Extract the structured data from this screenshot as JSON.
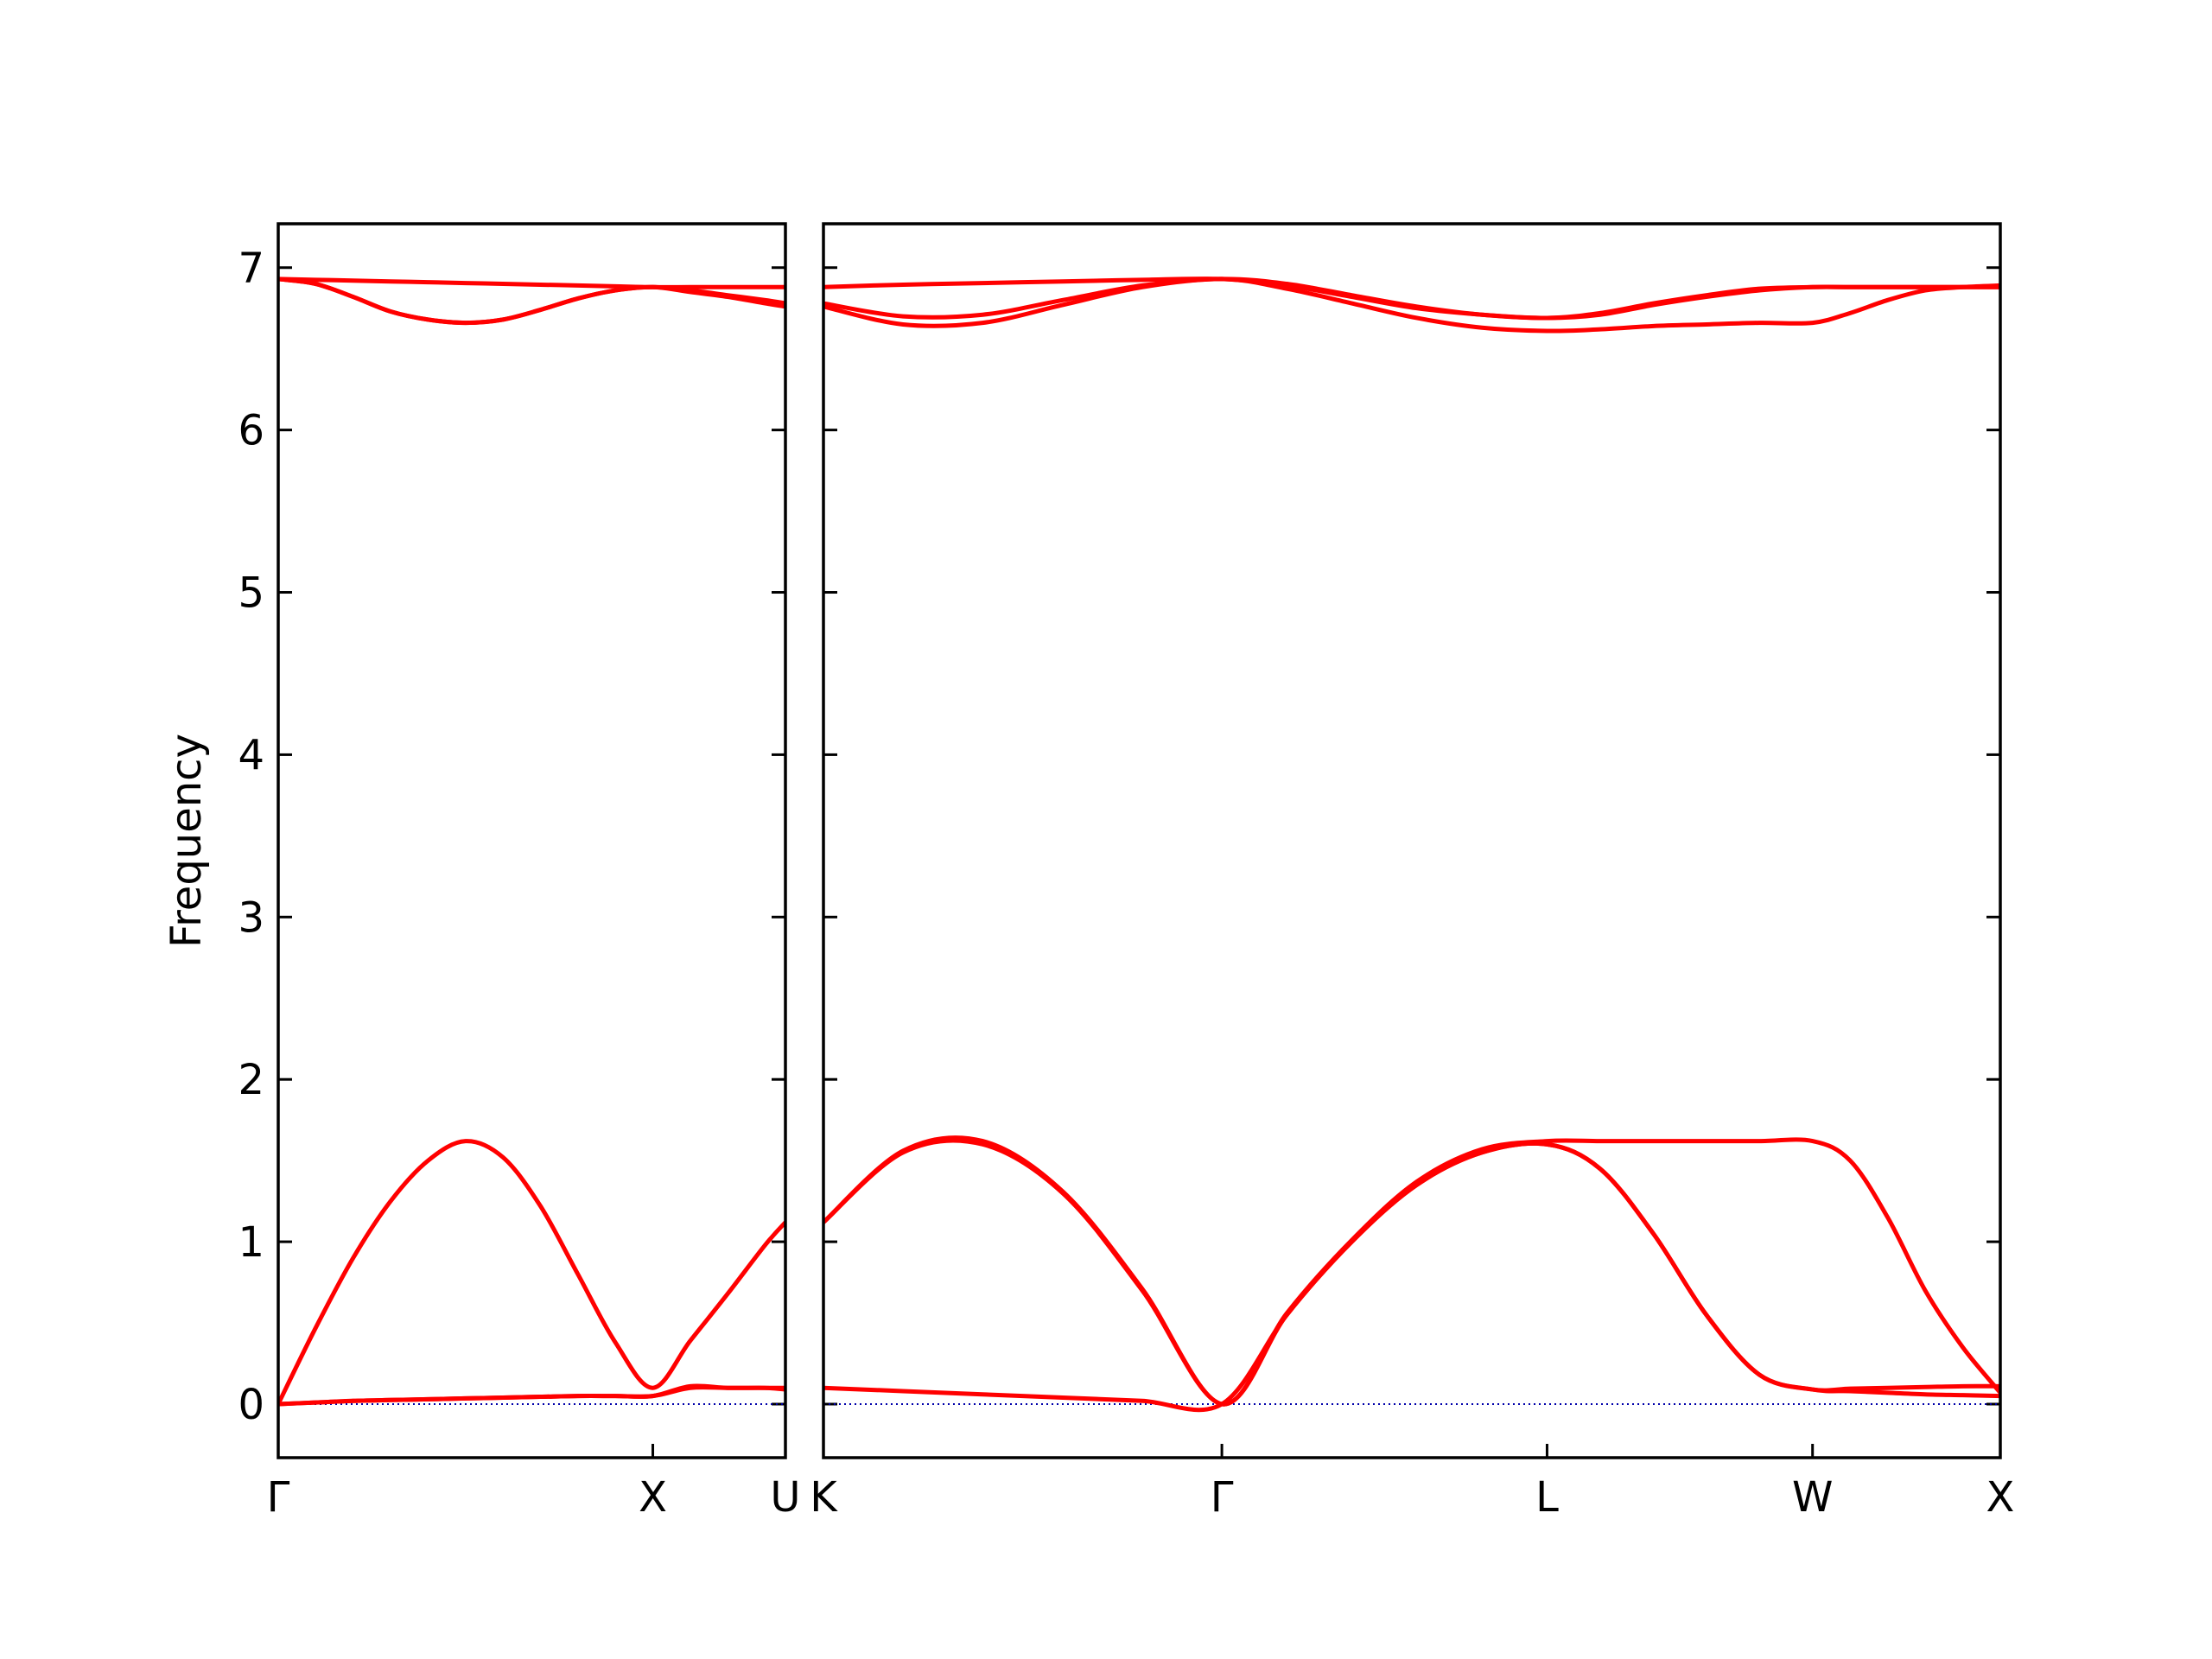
{
  "chart_data": [
    {
      "type": "line",
      "ylabel": "Frequency",
      "x": [
        0,
        0.1,
        0.2,
        0.3,
        0.4,
        0.5,
        0.6,
        0.7,
        0.8,
        0.9,
        1.0,
        1.1,
        1.2,
        1.3,
        1.354
      ],
      "xlim": [
        0,
        1.354
      ],
      "xticks": [
        {
          "value": 0,
          "label": "Γ"
        },
        {
          "value": 1,
          "label": "X"
        },
        {
          "value": 1.354,
          "label": "U"
        }
      ],
      "ylim": [
        -0.33,
        7.27
      ],
      "yticks": [
        0,
        1,
        2,
        3,
        4,
        5,
        6,
        7
      ],
      "show_ytick_labels": true,
      "hlines": [
        {
          "y": 0,
          "color": "#0000aa",
          "style": "dotted"
        }
      ],
      "series": [
        {
          "color": "#ff0000",
          "values": [
            0,
            0.01,
            0.02,
            0.025,
            0.03,
            0.035,
            0.04,
            0.045,
            0.05,
            0.05,
            0.05,
            0.11,
            0.1,
            0.1,
            0.09
          ]
        },
        {
          "color": "#ff0000",
          "values": [
            0,
            0.47,
            0.9,
            1.25,
            1.5,
            1.62,
            1.52,
            1.22,
            0.8,
            0.38,
            0.1,
            0.39,
            0.68,
            0.98,
            1.12
          ]
        },
        {
          "color": "#ff0000",
          "values": [
            0,
            0.01,
            0.02,
            0.025,
            0.03,
            0.035,
            0.04,
            0.045,
            0.05,
            0.05,
            0.05,
            0.1,
            0.1,
            0.1,
            0.1
          ]
        },
        {
          "color": "#ff0000",
          "values": [
            6.93,
            6.925,
            6.92,
            6.915,
            6.91,
            6.905,
            6.9,
            6.895,
            6.89,
            6.885,
            6.88,
            6.88,
            6.88,
            6.88,
            6.88
          ]
        },
        {
          "color": "#ff0000",
          "values": [
            6.93,
            6.9,
            6.82,
            6.73,
            6.68,
            6.66,
            6.68,
            6.74,
            6.81,
            6.86,
            6.88,
            6.86,
            6.83,
            6.8,
            6.78
          ]
        },
        {
          "color": "#ff0000",
          "values": [
            6.93,
            6.9,
            6.82,
            6.73,
            6.68,
            6.66,
            6.68,
            6.74,
            6.81,
            6.86,
            6.88,
            6.85,
            6.82,
            6.78,
            6.76
          ]
        }
      ]
    },
    {
      "type": "line",
      "x": [
        0,
        0.212,
        0.424,
        0.637,
        0.849,
        1.061,
        1.234,
        1.407,
        1.58,
        1.754,
        1.927,
        2.068,
        2.21,
        2.351,
        2.493,
        2.634,
        2.734,
        2.834,
        2.934,
        3.034,
        3.134
      ],
      "xlim": [
        0,
        3.134
      ],
      "xticks": [
        {
          "value": 0,
          "label": "K"
        },
        {
          "value": 1.061,
          "label": "Γ"
        },
        {
          "value": 1.927,
          "label": "L"
        },
        {
          "value": 2.634,
          "label": "W"
        },
        {
          "value": 3.134,
          "label": "X"
        }
      ],
      "ylim": [
        -0.33,
        7.27
      ],
      "yticks": [
        0,
        1,
        2,
        3,
        4,
        5,
        6,
        7
      ],
      "show_ytick_labels": false,
      "hlines": [
        {
          "y": 0,
          "color": "#0000aa",
          "style": "dotted"
        }
      ],
      "series": [
        {
          "color": "#ff0000",
          "values": [
            0.1,
            0.08,
            0.06,
            0.04,
            0.02,
            0,
            0.55,
            1.0,
            1.35,
            1.55,
            1.6,
            1.45,
            1.05,
            0.55,
            0.18,
            0.09,
            0.095,
            0.1,
            0.105,
            0.11,
            0.11
          ]
        },
        {
          "color": "#ff0000",
          "values": [
            1.12,
            1.55,
            1.6,
            1.3,
            0.7,
            0,
            0.55,
            1.0,
            1.35,
            1.55,
            1.6,
            1.45,
            1.05,
            0.55,
            0.18,
            0.09,
            0.08,
            0.07,
            0.06,
            0.055,
            0.05
          ]
        },
        {
          "color": "#ff0000",
          "values": [
            1.12,
            1.56,
            1.62,
            1.31,
            0.71,
            0,
            0.56,
            1.01,
            1.37,
            1.57,
            1.62,
            1.62,
            1.62,
            1.62,
            1.62,
            1.62,
            1.5,
            1.15,
            0.7,
            0.35,
            0.07
          ]
        },
        {
          "color": "#ff0000",
          "values": [
            6.88,
            6.895,
            6.905,
            6.915,
            6.925,
            6.93,
            6.89,
            6.82,
            6.75,
            6.71,
            6.69,
            6.72,
            6.78,
            6.83,
            6.87,
            6.88,
            6.88,
            6.88,
            6.88,
            6.88,
            6.88
          ]
        },
        {
          "color": "#ff0000",
          "values": [
            6.78,
            6.7,
            6.71,
            6.8,
            6.89,
            6.93,
            6.9,
            6.83,
            6.76,
            6.71,
            6.69,
            6.71,
            6.77,
            6.82,
            6.86,
            6.88,
            6.88,
            6.88,
            6.88,
            6.88,
            6.88
          ]
        },
        {
          "color": "#ff0000",
          "values": [
            6.76,
            6.65,
            6.66,
            6.77,
            6.88,
            6.93,
            6.87,
            6.78,
            6.69,
            6.63,
            6.61,
            6.62,
            6.64,
            6.65,
            6.66,
            6.66,
            6.72,
            6.8,
            6.86,
            6.88,
            6.89
          ]
        }
      ]
    }
  ]
}
